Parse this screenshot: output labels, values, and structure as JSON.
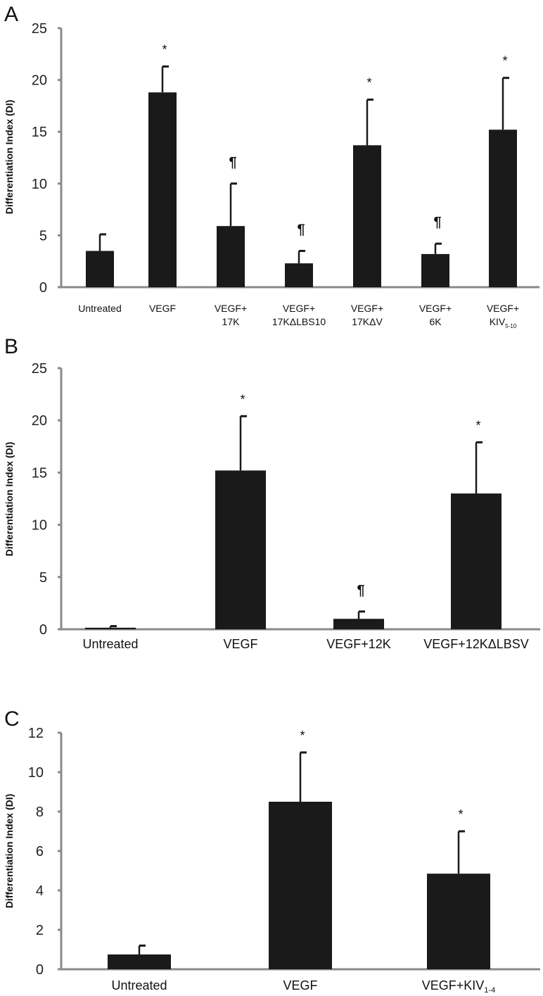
{
  "chart_data": [
    {
      "panel": "A",
      "type": "bar",
      "ylabel": "Differentiation Index (DI)",
      "ylim": [
        0,
        25
      ],
      "yticks": [
        0,
        5,
        10,
        15,
        20,
        25
      ],
      "categories": [
        {
          "lines": [
            "Untreated"
          ]
        },
        {
          "lines": [
            "VEGF"
          ]
        },
        {
          "lines": [
            "VEGF+",
            "17K"
          ]
        },
        {
          "lines": [
            "VEGF+",
            "17KΔLBS10"
          ]
        },
        {
          "lines": [
            "VEGF+",
            "17KΔV"
          ]
        },
        {
          "lines": [
            "VEGF+",
            "6K"
          ]
        },
        {
          "lines": [
            "VEGF+",
            "KIV"
          ],
          "sub": "5-10"
        }
      ],
      "values": [
        3.5,
        18.8,
        5.9,
        2.3,
        13.7,
        3.2,
        15.2
      ],
      "errors": [
        1.6,
        2.5,
        4.1,
        1.2,
        4.4,
        1.0,
        5.0
      ],
      "markers": [
        "",
        "*",
        "¶",
        "¶",
        "*",
        "¶",
        "*"
      ]
    },
    {
      "panel": "B",
      "type": "bar",
      "ylabel": "Differentiation Index (DI)",
      "ylim": [
        0,
        25
      ],
      "yticks": [
        0,
        5,
        10,
        15,
        20,
        25
      ],
      "categories": [
        {
          "lines": [
            "Untreated"
          ]
        },
        {
          "lines": [
            "VEGF"
          ]
        },
        {
          "lines": [
            "VEGF+12K"
          ]
        },
        {
          "lines": [
            "VEGF+12KΔLBSV"
          ]
        }
      ],
      "values": [
        0.15,
        15.2,
        1.0,
        13.0
      ],
      "errors": [
        0.15,
        5.2,
        0.7,
        4.9
      ],
      "markers": [
        "",
        "*",
        "¶",
        "*"
      ]
    },
    {
      "panel": "C",
      "type": "bar",
      "ylabel": "Differentiation Index (DI)",
      "ylim": [
        0,
        12
      ],
      "yticks": [
        0,
        2,
        4,
        6,
        8,
        10,
        12
      ],
      "categories": [
        {
          "lines": [
            "Untreated"
          ]
        },
        {
          "lines": [
            "VEGF"
          ]
        },
        {
          "lines": [
            "VEGF+KIV"
          ],
          "sub": "1-4"
        }
      ],
      "values": [
        0.75,
        8.5,
        4.85
      ],
      "errors": [
        0.45,
        2.5,
        2.15
      ],
      "markers": [
        "",
        "*",
        "*"
      ]
    }
  ]
}
